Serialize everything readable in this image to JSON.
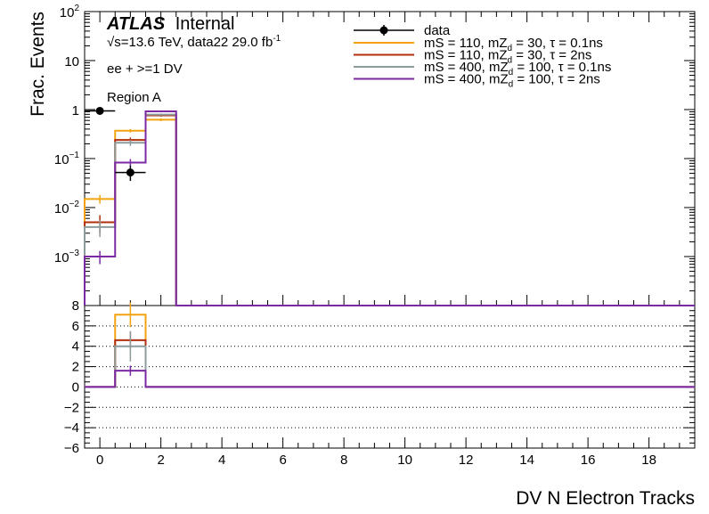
{
  "chart_data": [
    {
      "type": "line",
      "panel": "main",
      "ylabel": "Frac. Events",
      "yscale": "log",
      "ylim": [
        0.0001,
        100
      ],
      "xlim": [
        -0.5,
        19.5
      ],
      "y_ticks": [
        {
          "value": 100,
          "base": "10",
          "exp": "2"
        },
        {
          "value": 10,
          "base": "10",
          "exp": ""
        },
        {
          "value": 1,
          "base": "1",
          "exp": ""
        },
        {
          "value": 0.1,
          "base": "10",
          "exp": "−1"
        },
        {
          "value": 0.01,
          "base": "10",
          "exp": "−2"
        },
        {
          "value": 0.001,
          "base": "10",
          "exp": "−3"
        }
      ],
      "atlas": {
        "bold": "ATLAS",
        "rest": "Internal"
      },
      "labels": {
        "energy_prefix": "√s=13.6 TeV, data22 29.0 fb",
        "energy_sup": "-1",
        "channel": "ee + >=1 DV",
        "region": "Region A"
      },
      "bin_edges": [
        -0.5,
        0.5,
        1.5,
        2.5,
        3.5,
        19.5
      ],
      "data_points": [
        {
          "x": 0,
          "y": 0.94,
          "ylo": 0.88,
          "yhi": 1.0
        },
        {
          "x": 1,
          "y": 0.052,
          "ylo": 0.035,
          "yhi": 0.072
        }
      ],
      "series": [
        {
          "name": "mS = 110, mZd = 30, τ = 0.1ns",
          "legend": {
            "pre": "mS = 110, mZ",
            "sub": "d",
            "post": " = 30, τ = 0.1ns"
          },
          "color": "#f2a30f",
          "values": [
            0.015,
            0.37,
            0.62,
            0,
            0
          ],
          "err": [
            0.003,
            0.03,
            0.04,
            0,
            0
          ]
        },
        {
          "name": "mS = 110, mZd = 30, τ = 2ns",
          "legend": {
            "pre": "mS = 110, mZ",
            "sub": "d",
            "post": " = 30, τ = 2ns"
          },
          "color": "#b22e0c",
          "values": [
            0.005,
            0.24,
            0.76,
            0,
            0
          ],
          "err": [
            0.002,
            0.03,
            0.04,
            0,
            0
          ]
        },
        {
          "name": "mS = 400, mZd = 100, τ = 0.1ns",
          "legend": {
            "pre": "mS = 400, mZ",
            "sub": "d",
            "post": " = 100, τ = 0.1ns"
          },
          "color": "#8c9c9c",
          "values": [
            0.004,
            0.21,
            0.79,
            0,
            0
          ],
          "err": [
            0.0015,
            0.03,
            0.04,
            0,
            0
          ]
        },
        {
          "name": "mS = 400, mZd = 100, τ = 2ns",
          "legend": {
            "pre": "mS = 400, mZ",
            "sub": "d",
            "post": " = 100, τ = 2ns"
          },
          "color": "#7b2aa3",
          "values": [
            0.001,
            0.083,
            0.92,
            0,
            0
          ],
          "err": [
            0.0003,
            0.015,
            0.04,
            0,
            0
          ]
        }
      ],
      "legend_data_label": "data"
    },
    {
      "type": "line",
      "panel": "ratio",
      "xlabel": "DV N Electron Tracks",
      "ylim": [
        -6,
        8
      ],
      "y_ticks": [
        8,
        6,
        4,
        2,
        0,
        -2,
        -4,
        -6
      ],
      "y_tick_labels": [
        "8",
        "6",
        "4",
        "2",
        "0",
        "−2",
        "−4",
        "−6"
      ],
      "x_ticks": [
        0,
        2,
        4,
        6,
        8,
        10,
        12,
        14,
        16,
        18
      ],
      "x_tick_labels": [
        "0",
        "2",
        "4",
        "6",
        "8",
        "10",
        "12",
        "14",
        "16",
        "18"
      ],
      "xlim": [
        -0.5,
        19.5
      ],
      "bin_edges": [
        -0.5,
        0.5,
        1.5,
        19.5
      ],
      "series": [
        {
          "name": "mS = 110, mZd = 30, τ = 0.1ns",
          "color": "#f2a30f",
          "values": [
            0,
            7.1,
            0
          ],
          "err": [
            0,
            1.2,
            0
          ]
        },
        {
          "name": "mS = 110, mZd = 30, τ = 2ns",
          "color": "#b22e0c",
          "values": [
            0,
            4.6,
            0
          ],
          "err": [
            0,
            0.8,
            0
          ]
        },
        {
          "name": "mS = 400, mZd = 100, τ = 0.1ns",
          "color": "#8c9c9c",
          "values": [
            0,
            4.0,
            0
          ],
          "err": [
            0,
            1.5,
            0
          ]
        },
        {
          "name": "mS = 400, mZd = 100, τ = 2ns",
          "color": "#7b2aa3",
          "values": [
            0,
            1.6,
            0
          ],
          "err": [
            0,
            0.5,
            0
          ]
        }
      ]
    }
  ]
}
